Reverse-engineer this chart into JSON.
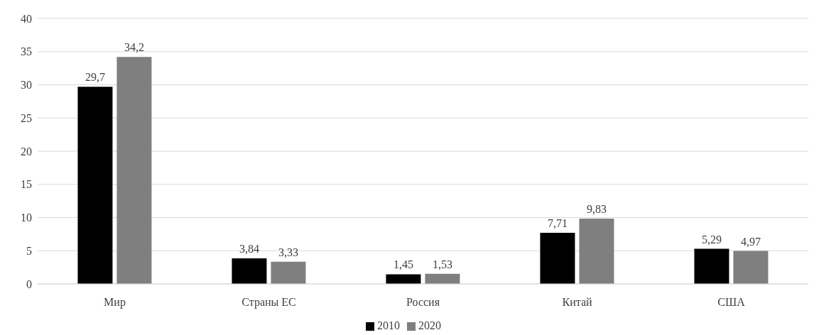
{
  "chart_data": {
    "type": "bar",
    "categories": [
      "Мир",
      "Страны ЕС",
      "Россия",
      "Китай",
      "США"
    ],
    "series": [
      {
        "name": "2010",
        "color": "#000000",
        "values": [
          29.7,
          3.84,
          1.45,
          7.71,
          5.29
        ],
        "value_labels": [
          "29,7",
          "3,84",
          "1,45",
          "7,71",
          "5,29"
        ]
      },
      {
        "name": "2020",
        "color": "#7f7f7f",
        "values": [
          34.2,
          3.33,
          1.53,
          9.83,
          4.97
        ],
        "value_labels": [
          "34,2",
          "3,33",
          "1,53",
          "9,83",
          "4,97"
        ]
      }
    ],
    "ylim": [
      0,
      40
    ],
    "yticks": [
      0,
      5,
      10,
      15,
      20,
      25,
      30,
      35,
      40
    ],
    "grid": "y",
    "legend": "bottom"
  }
}
